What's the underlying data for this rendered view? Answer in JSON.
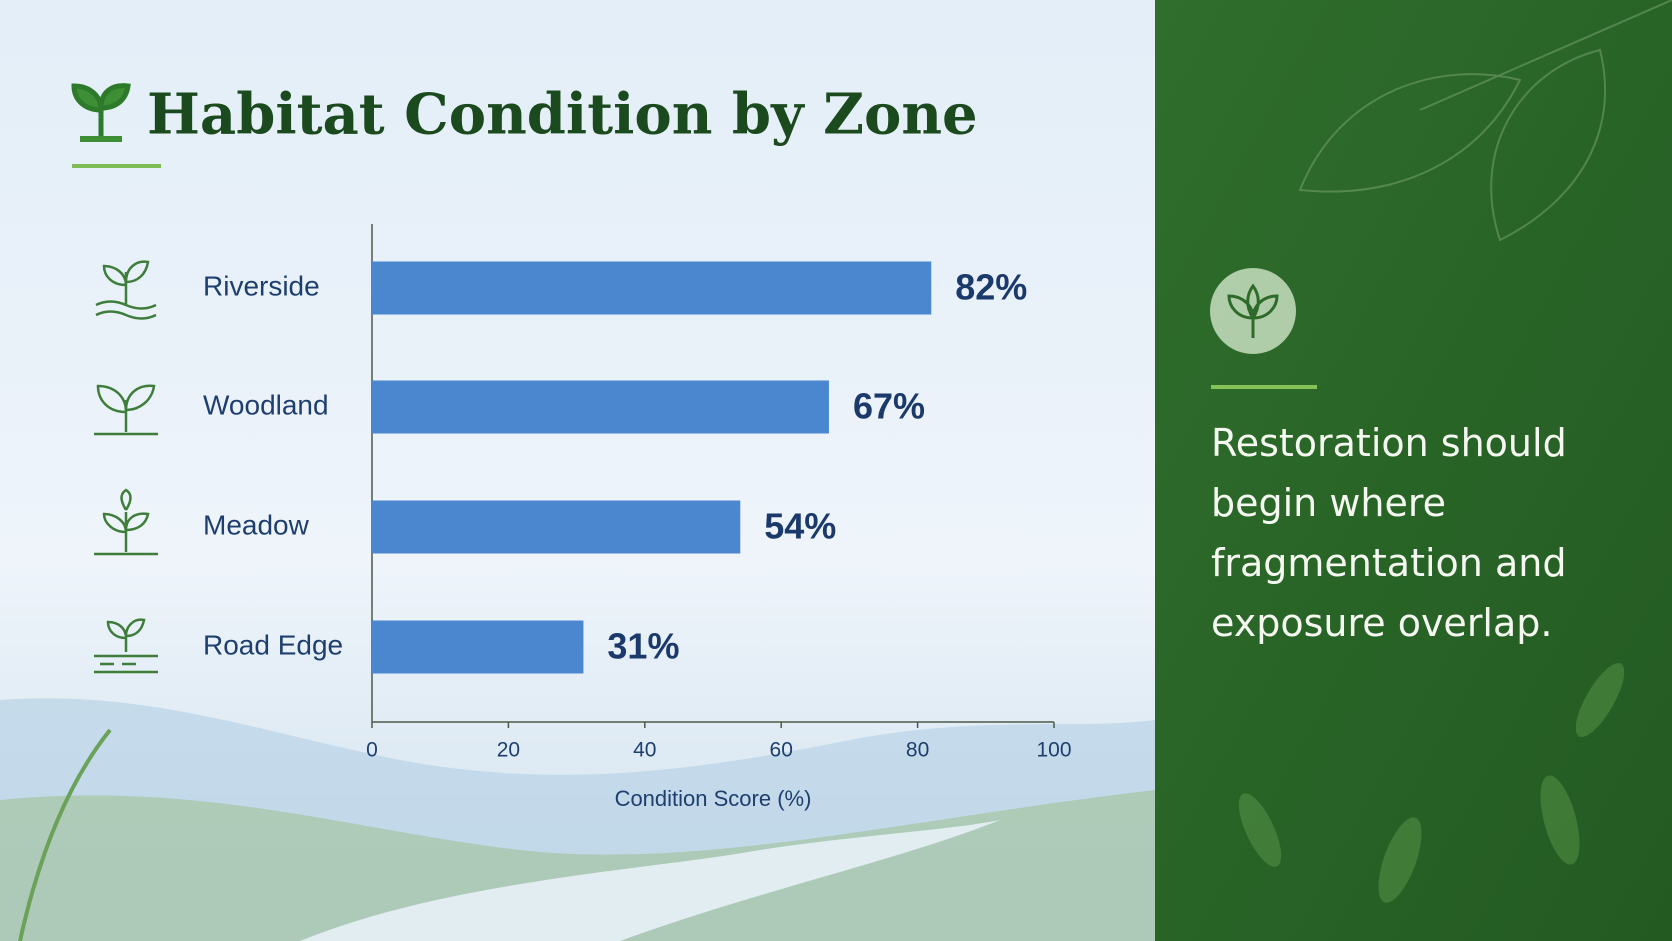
{
  "chart_data": {
    "type": "bar",
    "orientation": "horizontal",
    "title": "Habitat Condition by Zone",
    "categories": [
      "Riverside",
      "Woodland",
      "Meadow",
      "Road Edge"
    ],
    "values": [
      82,
      67,
      54,
      31
    ],
    "value_labels": [
      "82%",
      "67%",
      "54%",
      "31%"
    ],
    "color": "#4a87cf",
    "xlim": [
      0,
      100
    ],
    "xticks": [
      0,
      20,
      40,
      60,
      80,
      100
    ],
    "xlabel": "Condition Score (%)",
    "grid": false
  },
  "side_note": "Restoration should begin where fragmentation and exposure overlap."
}
